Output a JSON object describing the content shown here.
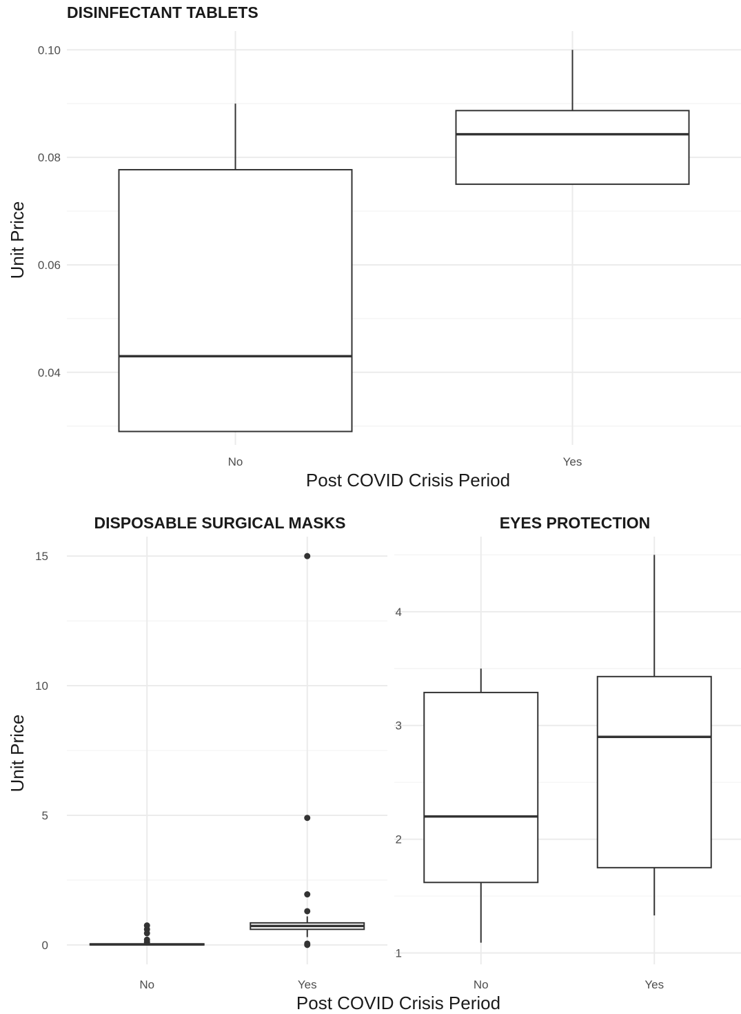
{
  "figure": {
    "shared_ylabel": "Unit Price",
    "shared_xlabel": "Post COVID Crisis Period"
  },
  "chart_data": [
    {
      "type": "boxplot",
      "title": "DISINFECTANT TABLETS",
      "xlabel": "Post COVID Crisis Period",
      "ylabel": "Unit Price",
      "categories": [
        "No",
        "Yes"
      ],
      "ylim": [
        0.0265,
        0.1035
      ],
      "yticks": [
        0.04,
        0.06,
        0.08,
        0.1
      ],
      "ytick_labels": [
        "0.04",
        "0.06",
        "0.08",
        "0.10"
      ],
      "grid": true,
      "boxes": [
        {
          "category": "No",
          "min": 0.029,
          "q1": 0.029,
          "median": 0.043,
          "q3": 0.0777,
          "max": 0.09,
          "outliers": []
        },
        {
          "category": "Yes",
          "min": 0.075,
          "q1": 0.075,
          "median": 0.0843,
          "q3": 0.0887,
          "max": 0.1,
          "outliers": []
        }
      ]
    },
    {
      "type": "boxplot",
      "title": "DISPOSABLE SURGICAL MASKS",
      "xlabel": "",
      "ylabel": "Unit Price",
      "categories": [
        "No",
        "Yes"
      ],
      "ylim": [
        -0.75,
        15.75
      ],
      "yticks": [
        0,
        5,
        10,
        15
      ],
      "ytick_labels": [
        "0",
        "5",
        "10",
        "15"
      ],
      "grid": true,
      "boxes": [
        {
          "category": "No",
          "min": 0.0,
          "q1": 0.0,
          "median": 0.02,
          "q3": 0.04,
          "max": 0.05,
          "outliers": [
            0.1,
            0.2,
            0.45,
            0.6,
            0.75
          ]
        },
        {
          "category": "Yes",
          "min": 0.3,
          "q1": 0.6,
          "median": 0.73,
          "q3": 0.85,
          "max": 1.1,
          "outliers": [
            0.0,
            0.05,
            1.3,
            1.95,
            4.9,
            15.0
          ]
        }
      ]
    },
    {
      "type": "boxplot",
      "title": "EYES PROTECTION",
      "xlabel": "",
      "ylabel": "",
      "categories": [
        "No",
        "Yes"
      ],
      "ylim": [
        0.9,
        4.66
      ],
      "yticks": [
        1,
        2,
        3,
        4
      ],
      "ytick_labels": [
        "1",
        "2",
        "3",
        "4"
      ],
      "grid": true,
      "boxes": [
        {
          "category": "No",
          "min": 1.09,
          "q1": 1.62,
          "median": 2.2,
          "q3": 3.29,
          "max": 3.5,
          "outliers": []
        },
        {
          "category": "Yes",
          "min": 1.33,
          "q1": 1.75,
          "median": 2.9,
          "q3": 3.43,
          "max": 4.5,
          "outliers": []
        }
      ]
    }
  ]
}
